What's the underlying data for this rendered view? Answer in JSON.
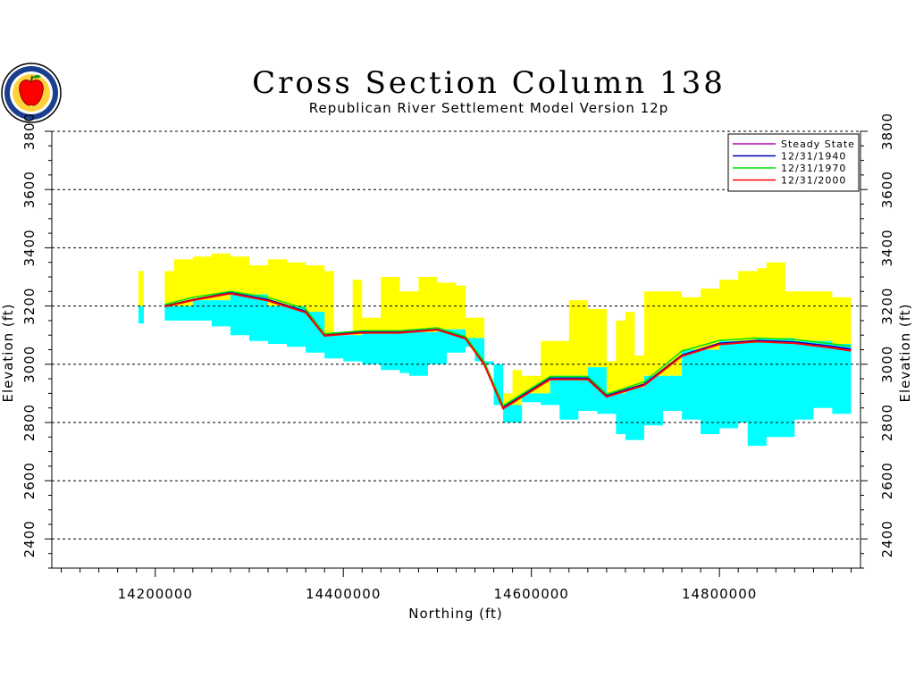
{
  "chart_data": {
    "type": "area",
    "title": "Cross Section Column 138",
    "subtitle": "Republican River Settlement Model Version 12p",
    "xlabel": "Northing (ft)",
    "ylabel": "Elevation (ft)",
    "xlim": [
      14090000,
      14950000
    ],
    "ylim": [
      2300,
      3800
    ],
    "x_ticks": [
      14200000,
      14400000,
      14600000,
      14800000
    ],
    "x_tick_labels": [
      "14200000",
      "14400000",
      "14600000",
      "14800000"
    ],
    "y_ticks": [
      2400,
      2600,
      2800,
      3000,
      3200,
      3400,
      3600,
      3800
    ],
    "y_tick_labels": [
      "2400",
      "2600",
      "2800",
      "3000",
      "3200",
      "3400",
      "3600",
      "3800"
    ],
    "grid": true,
    "legend_position": "top-right",
    "layers": [
      {
        "name": "upper-layer",
        "color": "#ffff00",
        "top": [
          [
            14210000,
            3320
          ],
          [
            14220000,
            3360
          ],
          [
            14240000,
            3370
          ],
          [
            14260000,
            3380
          ],
          [
            14280000,
            3370
          ],
          [
            14300000,
            3340
          ],
          [
            14320000,
            3360
          ],
          [
            14340000,
            3350
          ],
          [
            14360000,
            3340
          ],
          [
            14380000,
            3320
          ],
          [
            14390000,
            3100
          ],
          [
            14410000,
            3290
          ],
          [
            14420000,
            3160
          ],
          [
            14440000,
            3300
          ],
          [
            14460000,
            3250
          ],
          [
            14480000,
            3300
          ],
          [
            14500000,
            3280
          ],
          [
            14520000,
            3270
          ],
          [
            14530000,
            3160
          ],
          [
            14550000,
            3000
          ],
          [
            14570000,
            2900
          ],
          [
            14580000,
            2980
          ],
          [
            14590000,
            2960
          ],
          [
            14610000,
            3080
          ],
          [
            14640000,
            3220
          ],
          [
            14660000,
            3190
          ],
          [
            14680000,
            3010
          ],
          [
            14690000,
            3150
          ],
          [
            14700000,
            3180
          ],
          [
            14710000,
            3030
          ],
          [
            14720000,
            3250
          ],
          [
            14740000,
            3250
          ],
          [
            14760000,
            3230
          ],
          [
            14780000,
            3260
          ],
          [
            14800000,
            3290
          ],
          [
            14820000,
            3320
          ],
          [
            14840000,
            3330
          ],
          [
            14850000,
            3350
          ],
          [
            14870000,
            3250
          ],
          [
            14900000,
            3250
          ],
          [
            14920000,
            3230
          ],
          [
            14940000,
            3060
          ]
        ],
        "bottom": [
          [
            14210000,
            3200
          ],
          [
            14240000,
            3220
          ],
          [
            14280000,
            3240
          ],
          [
            14320000,
            3200
          ],
          [
            14360000,
            3180
          ],
          [
            14380000,
            3100
          ],
          [
            14420000,
            3110
          ],
          [
            14460000,
            3110
          ],
          [
            14500000,
            3120
          ],
          [
            14530000,
            3090
          ],
          [
            14550000,
            3000
          ],
          [
            14570000,
            2860
          ],
          [
            14590000,
            2900
          ],
          [
            14620000,
            2960
          ],
          [
            14660000,
            2990
          ],
          [
            14680000,
            2900
          ],
          [
            14700000,
            2920
          ],
          [
            14720000,
            2960
          ],
          [
            14760000,
            3050
          ],
          [
            14800000,
            3080
          ],
          [
            14840000,
            3090
          ],
          [
            14880000,
            3080
          ],
          [
            14920000,
            3070
          ],
          [
            14940000,
            3060
          ]
        ]
      },
      {
        "name": "lower-layer",
        "color": "#00ffff",
        "top": [
          [
            14210000,
            3200
          ],
          [
            14240000,
            3220
          ],
          [
            14280000,
            3240
          ],
          [
            14320000,
            3200
          ],
          [
            14360000,
            3180
          ],
          [
            14380000,
            3100
          ],
          [
            14420000,
            3110
          ],
          [
            14460000,
            3110
          ],
          [
            14500000,
            3120
          ],
          [
            14530000,
            3090
          ],
          [
            14550000,
            3000
          ],
          [
            14570000,
            2860
          ],
          [
            14590000,
            2900
          ],
          [
            14620000,
            2960
          ],
          [
            14660000,
            2990
          ],
          [
            14680000,
            2900
          ],
          [
            14700000,
            2920
          ],
          [
            14720000,
            2960
          ],
          [
            14760000,
            3050
          ],
          [
            14800000,
            3080
          ],
          [
            14840000,
            3090
          ],
          [
            14880000,
            3080
          ],
          [
            14920000,
            3070
          ],
          [
            14940000,
            3060
          ]
        ],
        "bottom": [
          [
            14210000,
            3150
          ],
          [
            14240000,
            3150
          ],
          [
            14260000,
            3130
          ],
          [
            14280000,
            3100
          ],
          [
            14300000,
            3080
          ],
          [
            14320000,
            3070
          ],
          [
            14340000,
            3060
          ],
          [
            14360000,
            3040
          ],
          [
            14380000,
            3020
          ],
          [
            14400000,
            3010
          ],
          [
            14420000,
            3000
          ],
          [
            14440000,
            2980
          ],
          [
            14460000,
            2970
          ],
          [
            14470000,
            2960
          ],
          [
            14490000,
            3000
          ],
          [
            14510000,
            3040
          ],
          [
            14530000,
            3060
          ],
          [
            14540000,
            3010
          ],
          [
            14560000,
            2860
          ],
          [
            14570000,
            2800
          ],
          [
            14590000,
            2870
          ],
          [
            14610000,
            2860
          ],
          [
            14630000,
            2810
          ],
          [
            14650000,
            2840
          ],
          [
            14670000,
            2830
          ],
          [
            14690000,
            2760
          ],
          [
            14700000,
            2740
          ],
          [
            14720000,
            2790
          ],
          [
            14740000,
            2840
          ],
          [
            14760000,
            2810
          ],
          [
            14780000,
            2760
          ],
          [
            14800000,
            2780
          ],
          [
            14820000,
            2800
          ],
          [
            14830000,
            2720
          ],
          [
            14850000,
            2750
          ],
          [
            14880000,
            2810
          ],
          [
            14900000,
            2850
          ],
          [
            14920000,
            2830
          ],
          [
            14940000,
            2830
          ]
        ]
      }
    ],
    "isolated_column": {
      "x": 14185000,
      "yellow": [
        3200,
        3320
      ],
      "cyan": [
        3140,
        3200
      ]
    },
    "series": [
      {
        "name": "Steady State",
        "color": "#b000b0",
        "x": [
          14210000,
          14240000,
          14280000,
          14320000,
          14360000,
          14380000,
          14420000,
          14460000,
          14500000,
          14530000,
          14550000,
          14570000,
          14590000,
          14620000,
          14660000,
          14680000,
          14700000,
          14720000,
          14760000,
          14800000,
          14840000,
          14880000,
          14920000,
          14940000
        ],
        "y": [
          3200,
          3220,
          3245,
          3220,
          3180,
          3100,
          3110,
          3110,
          3120,
          3090,
          3000,
          2850,
          2890,
          2950,
          2950,
          2890,
          2910,
          2930,
          3030,
          3070,
          3080,
          3075,
          3060,
          3050
        ]
      },
      {
        "name": "12/31/1940",
        "color": "#0000c0",
        "x": [
          14210000,
          14240000,
          14280000,
          14320000,
          14360000,
          14380000,
          14420000,
          14460000,
          14500000,
          14530000,
          14550000,
          14570000,
          14590000,
          14620000,
          14660000,
          14680000,
          14700000,
          14720000,
          14760000,
          14800000,
          14840000,
          14880000,
          14920000,
          14940000
        ],
        "y": [
          3200,
          3222,
          3246,
          3222,
          3182,
          3100,
          3112,
          3110,
          3120,
          3090,
          3002,
          2852,
          2892,
          2952,
          2952,
          2892,
          2912,
          2932,
          3032,
          3072,
          3082,
          3077,
          3062,
          3052
        ]
      },
      {
        "name": "12/31/1970",
        "color": "#00e000",
        "x": [
          14210000,
          14240000,
          14280000,
          14320000,
          14360000,
          14380000,
          14420000,
          14460000,
          14500000,
          14530000,
          14550000,
          14570000,
          14590000,
          14620000,
          14660000,
          14680000,
          14700000,
          14720000,
          14760000,
          14800000,
          14840000,
          14880000,
          14920000,
          14940000
        ],
        "y": [
          3205,
          3230,
          3250,
          3230,
          3190,
          3105,
          3115,
          3115,
          3125,
          3095,
          3008,
          2858,
          2898,
          2958,
          2958,
          2898,
          2918,
          2940,
          3045,
          3082,
          3090,
          3085,
          3070,
          3062
        ]
      },
      {
        "name": "12/31/2000",
        "color": "#ff0000",
        "x": [
          14210000,
          14240000,
          14280000,
          14320000,
          14360000,
          14380000,
          14420000,
          14460000,
          14500000,
          14530000,
          14550000,
          14570000,
          14590000,
          14620000,
          14660000,
          14680000,
          14700000,
          14720000,
          14760000,
          14800000,
          14840000,
          14880000,
          14920000,
          14940000
        ],
        "y": [
          3198,
          3220,
          3243,
          3218,
          3178,
          3098,
          3108,
          3108,
          3118,
          3088,
          2998,
          2848,
          2888,
          2948,
          2948,
          2888,
          2908,
          2928,
          3028,
          3068,
          3078,
          3072,
          3056,
          3046
        ]
      }
    ]
  },
  "logo": {
    "icon": "apple-seal-icon",
    "color": "#1a3f8f",
    "accent": "#ff0000"
  }
}
